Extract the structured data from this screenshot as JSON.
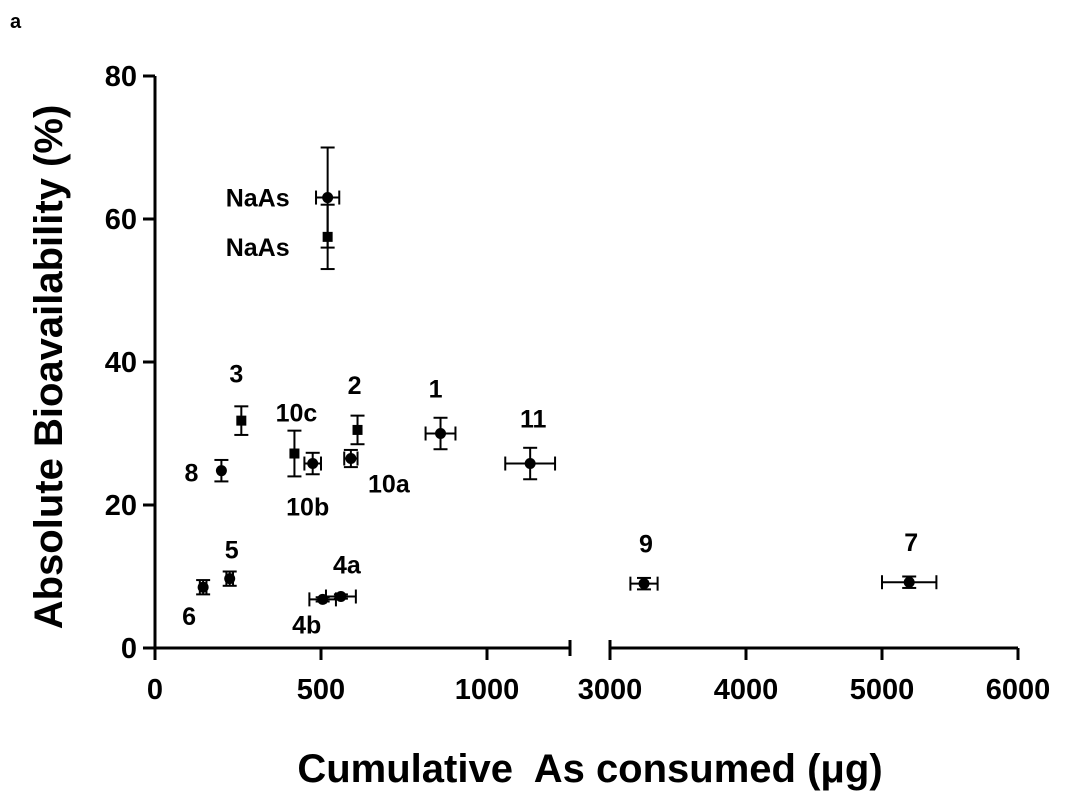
{
  "panel_label": "a",
  "chart_data": {
    "type": "scatter",
    "title": "",
    "xlabel": "Cumulative  As consumed (μg)",
    "ylabel": "Absolute Bioavailability  (%)",
    "ylim": [
      0,
      80
    ],
    "yticks": [
      "0",
      "20",
      "40",
      "60",
      "80"
    ],
    "x_segments": [
      {
        "range": [
          0,
          1250
        ],
        "ticks": [
          {
            "v": 0,
            "label": "0"
          },
          {
            "v": 500,
            "label": "500"
          },
          {
            "v": 1000,
            "label": "1000"
          }
        ]
      },
      {
        "range": [
          3000,
          6000
        ],
        "ticks": [
          {
            "v": 3000,
            "label": "3000"
          },
          {
            "v": 4000,
            "label": "4000"
          },
          {
            "v": 5000,
            "label": "5000"
          },
          {
            "v": 6000,
            "label": "6000"
          }
        ]
      }
    ],
    "grid": false,
    "points": [
      {
        "label": "NaAs",
        "x": 520,
        "y": 63,
        "xerr": 35,
        "yerr": 7,
        "marker": "circle"
      },
      {
        "label": "NaAs",
        "x": 520,
        "y": 57.5,
        "xerr": 0,
        "yerr": 4.5,
        "marker": "square"
      },
      {
        "label": "3",
        "x": 260,
        "y": 31.8,
        "xerr": 0,
        "yerr": 2,
        "marker": "square"
      },
      {
        "label": "2",
        "x": 610,
        "y": 30.5,
        "xerr": 0,
        "yerr": 2,
        "marker": "square"
      },
      {
        "label": "1",
        "x": 860,
        "y": 30,
        "xerr": 45,
        "yerr": 2.2,
        "marker": "circle"
      },
      {
        "label": "11",
        "x": 1130,
        "y": 25.8,
        "xerr": 75,
        "yerr": 2.2,
        "marker": "circle"
      },
      {
        "label": "10c",
        "x": 420,
        "y": 27.2,
        "xerr": 0,
        "yerr": 3.2,
        "marker": "square"
      },
      {
        "label": "10b",
        "x": 475,
        "y": 25.8,
        "xerr": 25,
        "yerr": 1.5,
        "marker": "circle"
      },
      {
        "label": "10a",
        "x": 590,
        "y": 26.5,
        "xerr": 20,
        "yerr": 1.2,
        "marker": "circle"
      },
      {
        "label": "8",
        "x": 200,
        "y": 24.8,
        "xerr": 0,
        "yerr": 1.5,
        "marker": "circle"
      },
      {
        "label": "5",
        "x": 225,
        "y": 9.7,
        "xerr": 10,
        "yerr": 1,
        "marker": "circle"
      },
      {
        "label": "6",
        "x": 145,
        "y": 8.5,
        "xerr": 10,
        "yerr": 1,
        "marker": "circle"
      },
      {
        "label": "4a",
        "x": 560,
        "y": 7.2,
        "xerr": 45,
        "yerr": 0.3,
        "marker": "circle"
      },
      {
        "label": "4b",
        "x": 505,
        "y": 6.8,
        "xerr": 40,
        "yerr": 0.3,
        "marker": "circle"
      },
      {
        "label": "9",
        "x": 3250,
        "y": 9,
        "xerr": 100,
        "yerr": 0.8,
        "marker": "circle"
      },
      {
        "label": "7",
        "x": 5200,
        "y": 9.2,
        "xerr": 200,
        "yerr": 0.8,
        "marker": "circle"
      }
    ]
  }
}
